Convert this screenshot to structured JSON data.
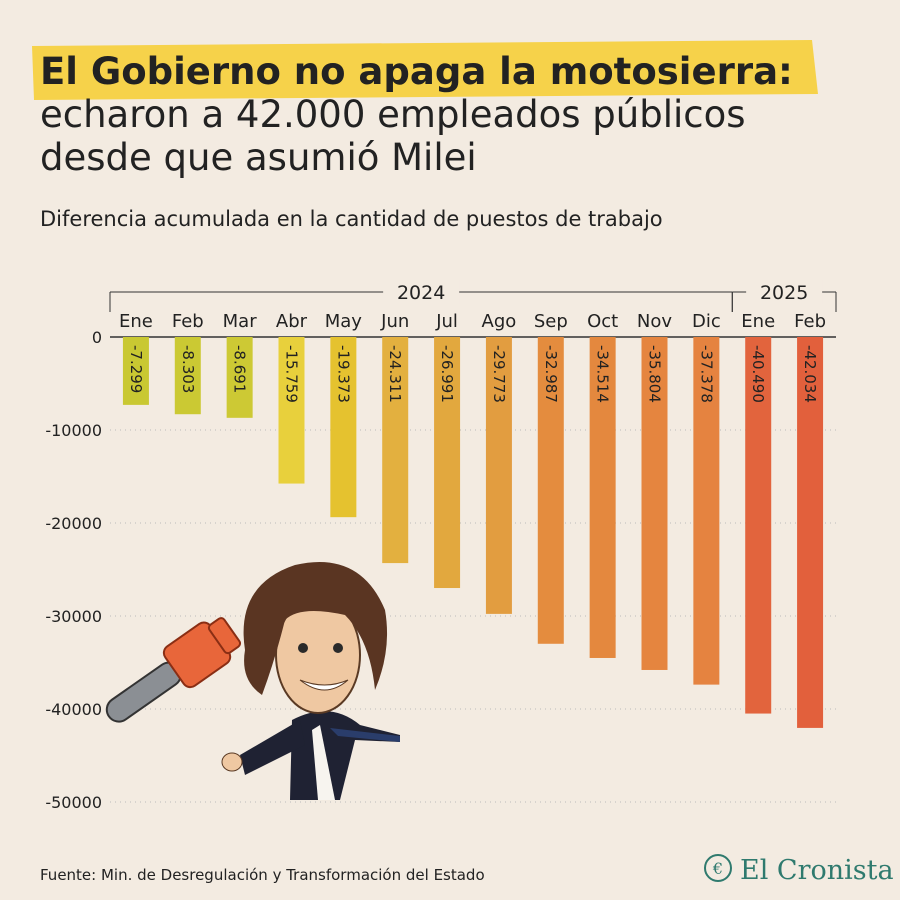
{
  "chart_data": {
    "type": "bar",
    "title_highlight": "El Gobierno no apaga la motosierra:",
    "title": [
      "echaron a 42.000 empleados públicos",
      "desde que asumió Milei"
    ],
    "subtitle": "Diferencia acumulada en la cantidad de puestos de trabajo",
    "groups": [
      {
        "label": "2024",
        "categories": [
          "Ene",
          "Feb",
          "Mar",
          "Abr",
          "May",
          "Jun",
          "Jul",
          "Ago",
          "Sep",
          "Oct",
          "Nov",
          "Dic"
        ],
        "values": [
          -7299,
          -8303,
          -8691,
          -15759,
          -19373,
          -24311,
          -26991,
          -29773,
          -32987,
          -34514,
          -35804,
          -37378
        ],
        "value_labels": [
          "-7.299",
          "-8.303",
          "-8.691",
          "-15.759",
          "-19.373",
          "-24.311",
          "-26.991",
          "-29.773",
          "-32.987",
          "-34.514",
          "-35.804",
          "-37.378"
        ],
        "colors": [
          "#c9c832",
          "#cbc933",
          "#cdc934",
          "#e8d03c",
          "#e5c22f",
          "#e3b03f",
          "#e2a83e",
          "#e29d40",
          "#e48c3e",
          "#e4883e",
          "#e5853f",
          "#e58340"
        ]
      },
      {
        "label": "2025",
        "categories": [
          "Ene",
          "Feb"
        ],
        "values": [
          -40490,
          -42034
        ],
        "value_labels": [
          "-40.490",
          "-42.034"
        ],
        "colors": [
          "#e2643d",
          "#e2603c"
        ]
      }
    ],
    "ylim": [
      -50000,
      0
    ],
    "yticks": [
      0,
      -10000,
      -20000,
      -30000,
      -40000,
      -50000
    ],
    "grid": true,
    "source": "Fuente: Min. de Desregulación y Transformación del Estado",
    "brand": "El Cronista"
  }
}
